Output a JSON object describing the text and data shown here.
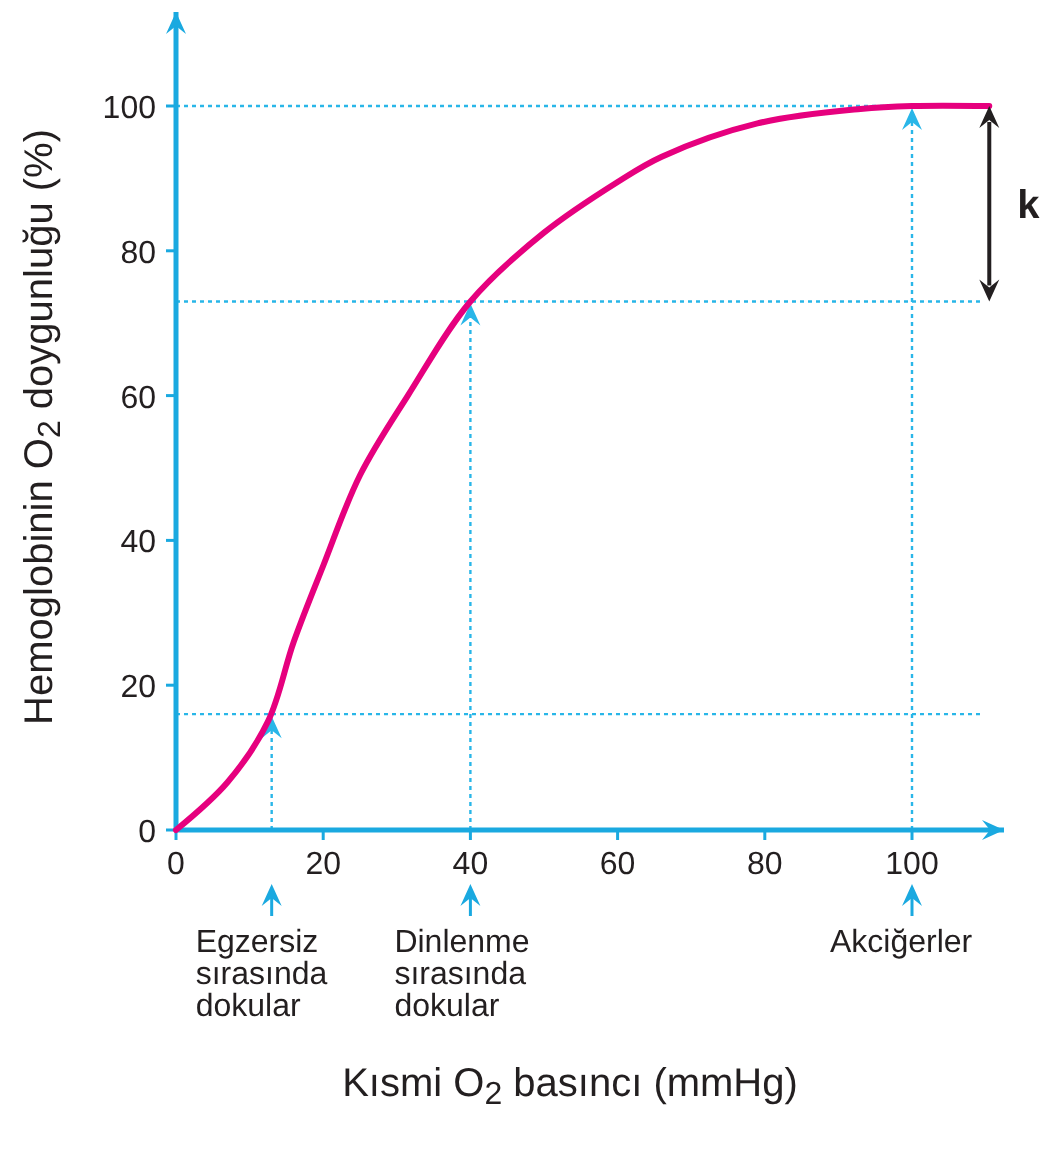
{
  "chart_data": {
    "type": "line",
    "xlabel": "Kısmi O$_{2}$ basıncı (mmHg)",
    "ylabel": "Hemoglobinin O$_{2}$ doygunluğu (%)",
    "x": [
      0,
      7,
      12.5,
      16,
      20,
      25,
      31.5,
      40,
      50,
      60,
      66,
      79,
      93,
      100,
      110.5
    ],
    "series": [
      {
        "color": "#e6007e",
        "values": [
          0,
          6.6,
          15,
          26,
          36.5,
          49,
          60,
          73,
          82.5,
          89.5,
          93,
          97.6,
          99.6,
          100,
          100
        ]
      }
    ],
    "xlim": [
      0,
      112.5
    ],
    "ylim": [
      0,
      113
    ],
    "xticks": [
      0,
      20,
      40,
      60,
      80,
      100
    ],
    "yticks": [
      0,
      20,
      40,
      60,
      80,
      100
    ],
    "ref_lines": [
      {
        "axis": "x",
        "value": 13,
        "color": "#29b6e8",
        "line_style": "dotted"
      },
      {
        "axis": "x",
        "value": 40,
        "color": "#29b6e8",
        "line_style": "dotted"
      },
      {
        "axis": "x",
        "value": 100,
        "color": "#29b6e8",
        "line_style": "dotted"
      },
      {
        "axis": "y",
        "value": 16,
        "color": "#29b6e8",
        "line_style": "dotted"
      },
      {
        "axis": "y",
        "value": 73,
        "color": "#29b6e8",
        "line_style": "dotted"
      },
      {
        "axis": "y",
        "value": 100,
        "color": "#29b6e8",
        "line_style": "dotted"
      }
    ],
    "annotations": [
      "Egzersiz\nsırasında\ndokular",
      "Dinlenme\nsırasında\ndokular",
      "Akciğerler",
      "k"
    ],
    "grid": false,
    "line_style": "solid"
  }
}
